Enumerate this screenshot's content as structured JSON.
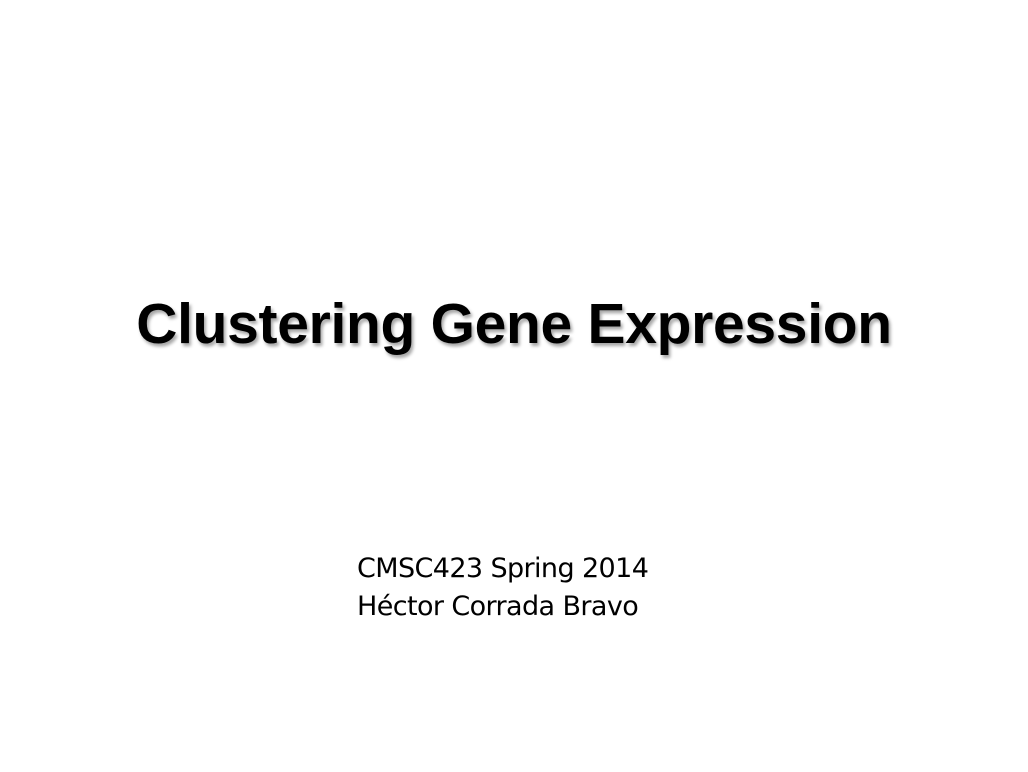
{
  "slide": {
    "title": "Clustering Gene Expression",
    "subtitle_lines": [
      "CMSC423 Spring 2014",
      "Héctor Corrada Bravo"
    ]
  }
}
